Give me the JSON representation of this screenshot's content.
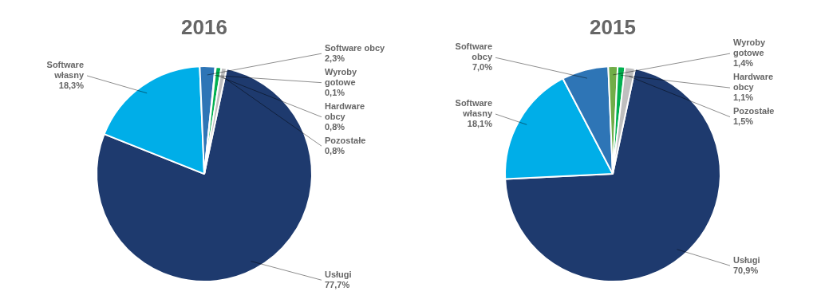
{
  "chart_data": [
    {
      "type": "pie",
      "title": "2016",
      "categories": [
        "Usługi",
        "Software\nwłasny",
        "Software obcy",
        "Wyroby\ngotowe",
        "Hardware\nobcy",
        "Pozostałe"
      ],
      "values": [
        77.7,
        18.3,
        2.3,
        0.1,
        0.8,
        0.8
      ],
      "value_labels": [
        "77,7%",
        "18,3%",
        "2,3%",
        "0,1%",
        "0,8%",
        "0,8%"
      ],
      "colors": [
        "#1e3a6e",
        "#00aee8",
        "#2e75b6",
        "#70ad47",
        "#00b050",
        "#bfbfbf"
      ],
      "data_labels": true
    },
    {
      "type": "pie",
      "title": "2015",
      "categories": [
        "Usługi",
        "Software\nwłasny",
        "Software\nobcy",
        "Wyroby\ngotowe",
        "Hardware\nobcy",
        "Pozostałe"
      ],
      "values": [
        70.9,
        18.1,
        7.0,
        1.4,
        1.1,
        1.5
      ],
      "value_labels": [
        "70,9%",
        "18,1%",
        "7,0%",
        "1,4%",
        "1,1%",
        "1,5%"
      ],
      "colors": [
        "#1e3a6e",
        "#00aee8",
        "#2e75b6",
        "#70ad47",
        "#00b050",
        "#bfbfbf"
      ],
      "data_labels": true
    }
  ]
}
